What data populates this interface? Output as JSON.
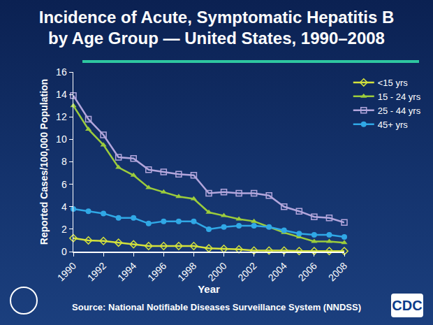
{
  "chart_data": {
    "type": "line",
    "title": "Incidence of Acute, Symptomatic Hepatitis B\nby Age Group — United States, 1990–2008",
    "source": "Source: National Notifiable Diseases Surveillance System (NNDSS)",
    "logo": "CDC",
    "x_label": "Year",
    "y_label": "Reported Cases/100,000 Population",
    "x": [
      1990,
      1991,
      1992,
      1993,
      1994,
      1995,
      1996,
      1997,
      1998,
      1999,
      2000,
      2001,
      2002,
      2003,
      2004,
      2005,
      2006,
      2007,
      2008
    ],
    "xlim": [
      1990,
      2008
    ],
    "xticks": [
      1990,
      1992,
      1994,
      1996,
      1998,
      2000,
      2002,
      2004,
      2006,
      2008
    ],
    "ylim": [
      0,
      16
    ],
    "yticks": [
      0,
      2,
      4,
      6,
      8,
      10,
      12,
      14,
      16
    ],
    "grid": false,
    "legend": "upper right",
    "series": [
      {
        "name": "<15 yrs",
        "color": "#d4e23c",
        "marker": "diamond-open",
        "values": [
          1.2,
          1.0,
          0.95,
          0.8,
          0.65,
          0.5,
          0.5,
          0.5,
          0.5,
          0.3,
          0.25,
          0.2,
          0.1,
          0.1,
          0.1,
          0.05,
          0.05,
          0.05,
          0.05
        ]
      },
      {
        "name": "15 - 24 yrs",
        "color": "#9ccc3c",
        "marker": "triangle-up",
        "values": [
          13.0,
          10.9,
          9.5,
          7.5,
          6.8,
          5.7,
          5.3,
          4.9,
          4.7,
          3.5,
          3.2,
          2.9,
          2.7,
          2.2,
          1.7,
          1.3,
          0.9,
          0.9,
          0.8
        ]
      },
      {
        "name": "25 - 44 yrs",
        "color": "#b3a6dc",
        "marker": "square-open",
        "values": [
          13.9,
          11.8,
          10.4,
          8.4,
          8.3,
          7.3,
          7.1,
          6.9,
          6.8,
          5.2,
          5.3,
          5.2,
          5.2,
          5.0,
          4.0,
          3.6,
          3.1,
          3.0,
          2.6
        ]
      },
      {
        "name": "45+ yrs",
        "color": "#30a8e6",
        "marker": "circle",
        "values": [
          3.8,
          3.6,
          3.4,
          3.0,
          3.0,
          2.5,
          2.7,
          2.7,
          2.7,
          2.0,
          2.2,
          2.3,
          2.3,
          2.2,
          1.9,
          1.6,
          1.5,
          1.5,
          1.3
        ]
      }
    ]
  }
}
